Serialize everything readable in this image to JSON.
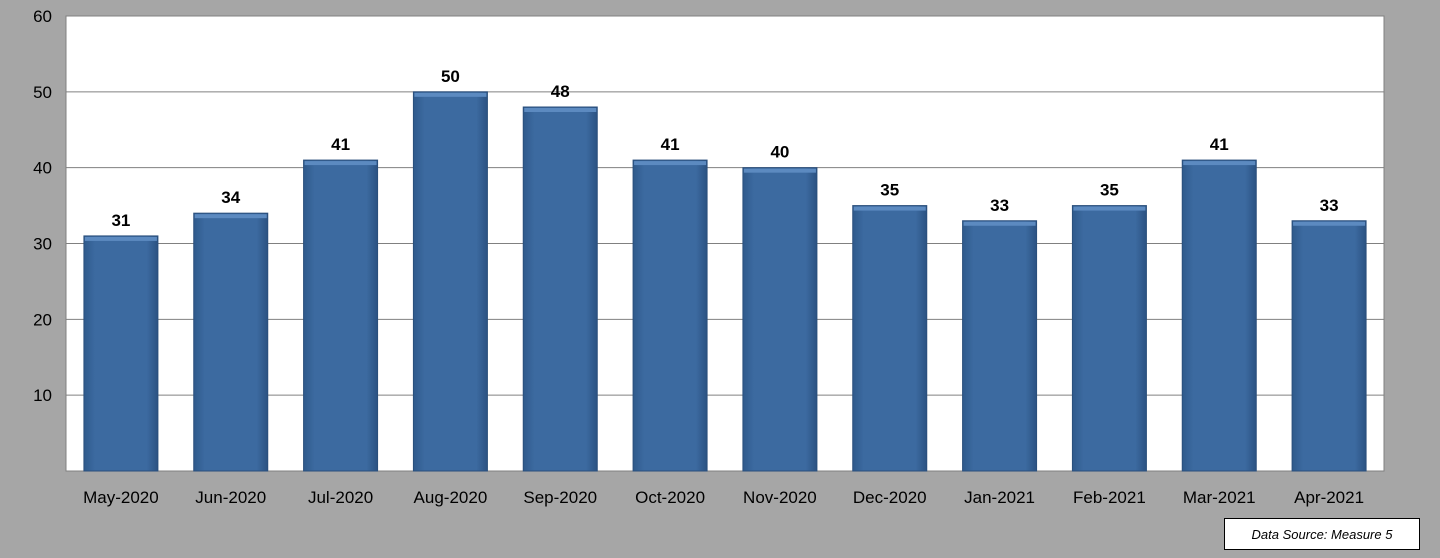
{
  "chart_data": {
    "type": "bar",
    "categories": [
      "May-2020",
      "Jun-2020",
      "Jul-2020",
      "Aug-2020",
      "Sep-2020",
      "Oct-2020",
      "Nov-2020",
      "Dec-2020",
      "Jan-2021",
      "Feb-2021",
      "Mar-2021",
      "Apr-2021"
    ],
    "values": [
      31,
      34,
      41,
      50,
      48,
      41,
      40,
      35,
      33,
      35,
      41,
      33
    ],
    "y_ticks": [
      "60",
      "50",
      "40",
      "30",
      "20",
      "10"
    ],
    "ylim": [
      0,
      60
    ],
    "grid": true,
    "data_labels": true,
    "colors": {
      "bar": "#3c6aa0",
      "bar_top": "#5c8ac0",
      "plot_bg": "#ffffff",
      "frame_bg": "#a6a6a6",
      "grid": "#808080"
    }
  },
  "source_note": "Data Source: Measure 5"
}
